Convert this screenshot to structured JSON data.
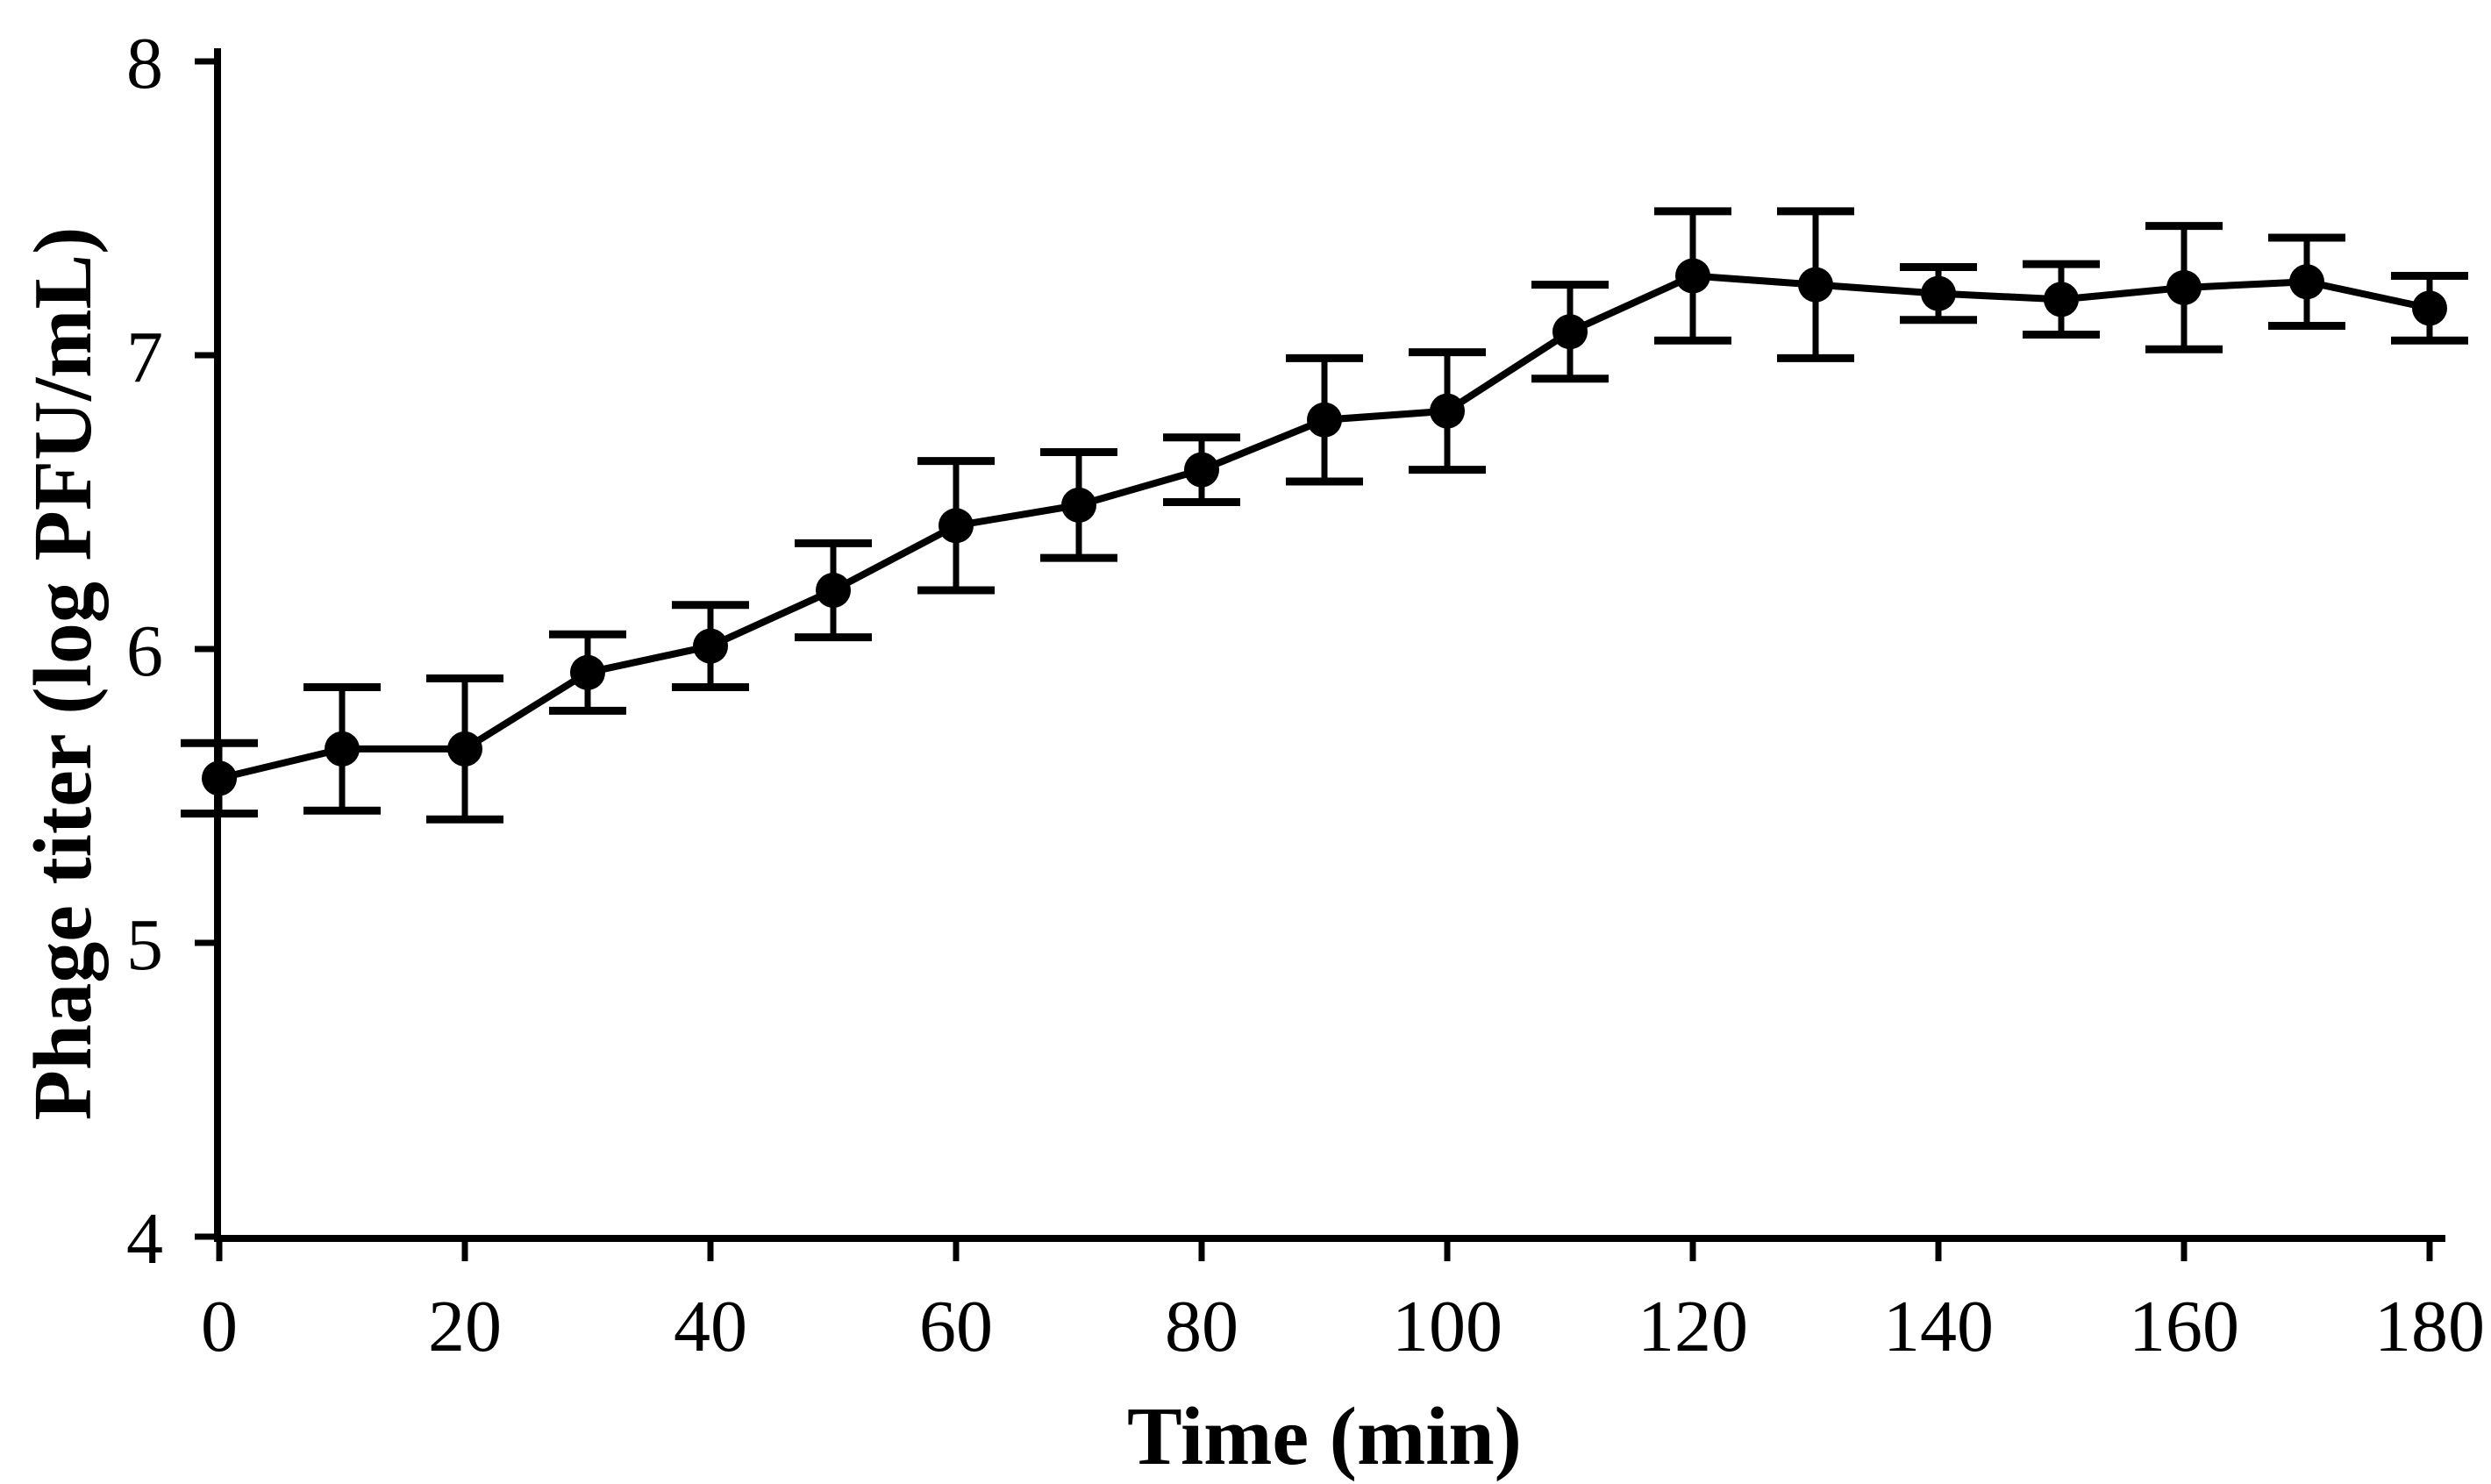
{
  "figure": {
    "background_color": "#ffffff",
    "axis_color": "#000000",
    "series_color": "#000000"
  },
  "chart_data": {
    "type": "line",
    "title": "",
    "xlabel": "Time (min)",
    "ylabel": "Phage titer (log PFU/mL)",
    "x": [
      0,
      10,
      20,
      30,
      40,
      50,
      60,
      70,
      80,
      90,
      100,
      110,
      120,
      130,
      140,
      150,
      160,
      170,
      180
    ],
    "series": [
      {
        "name": "Phage titer",
        "values": [
          5.56,
          5.66,
          5.66,
          5.92,
          6.01,
          6.2,
          6.42,
          6.49,
          6.61,
          6.78,
          6.81,
          7.08,
          7.27,
          7.24,
          7.21,
          7.19,
          7.23,
          7.25,
          7.16
        ],
        "errors": [
          0.12,
          0.21,
          0.24,
          0.13,
          0.14,
          0.16,
          0.22,
          0.18,
          0.11,
          0.21,
          0.2,
          0.16,
          0.22,
          0.25,
          0.09,
          0.12,
          0.21,
          0.15,
          0.11
        ],
        "marker": "filled-circle",
        "error_bars": "capped"
      }
    ],
    "xlim": [
      0,
      180
    ],
    "ylim": [
      4,
      8
    ],
    "x_tick_labels": [
      "0",
      "20",
      "40",
      "60",
      "80",
      "100",
      "120",
      "140",
      "160",
      "180"
    ],
    "x_tick_values": [
      0,
      20,
      40,
      60,
      80,
      100,
      120,
      140,
      160,
      180
    ],
    "y_tick_labels": [
      "4",
      "5",
      "6",
      "7",
      "8"
    ],
    "y_tick_values": [
      4,
      5,
      6,
      7,
      8
    ],
    "grid": false,
    "legend": false
  }
}
